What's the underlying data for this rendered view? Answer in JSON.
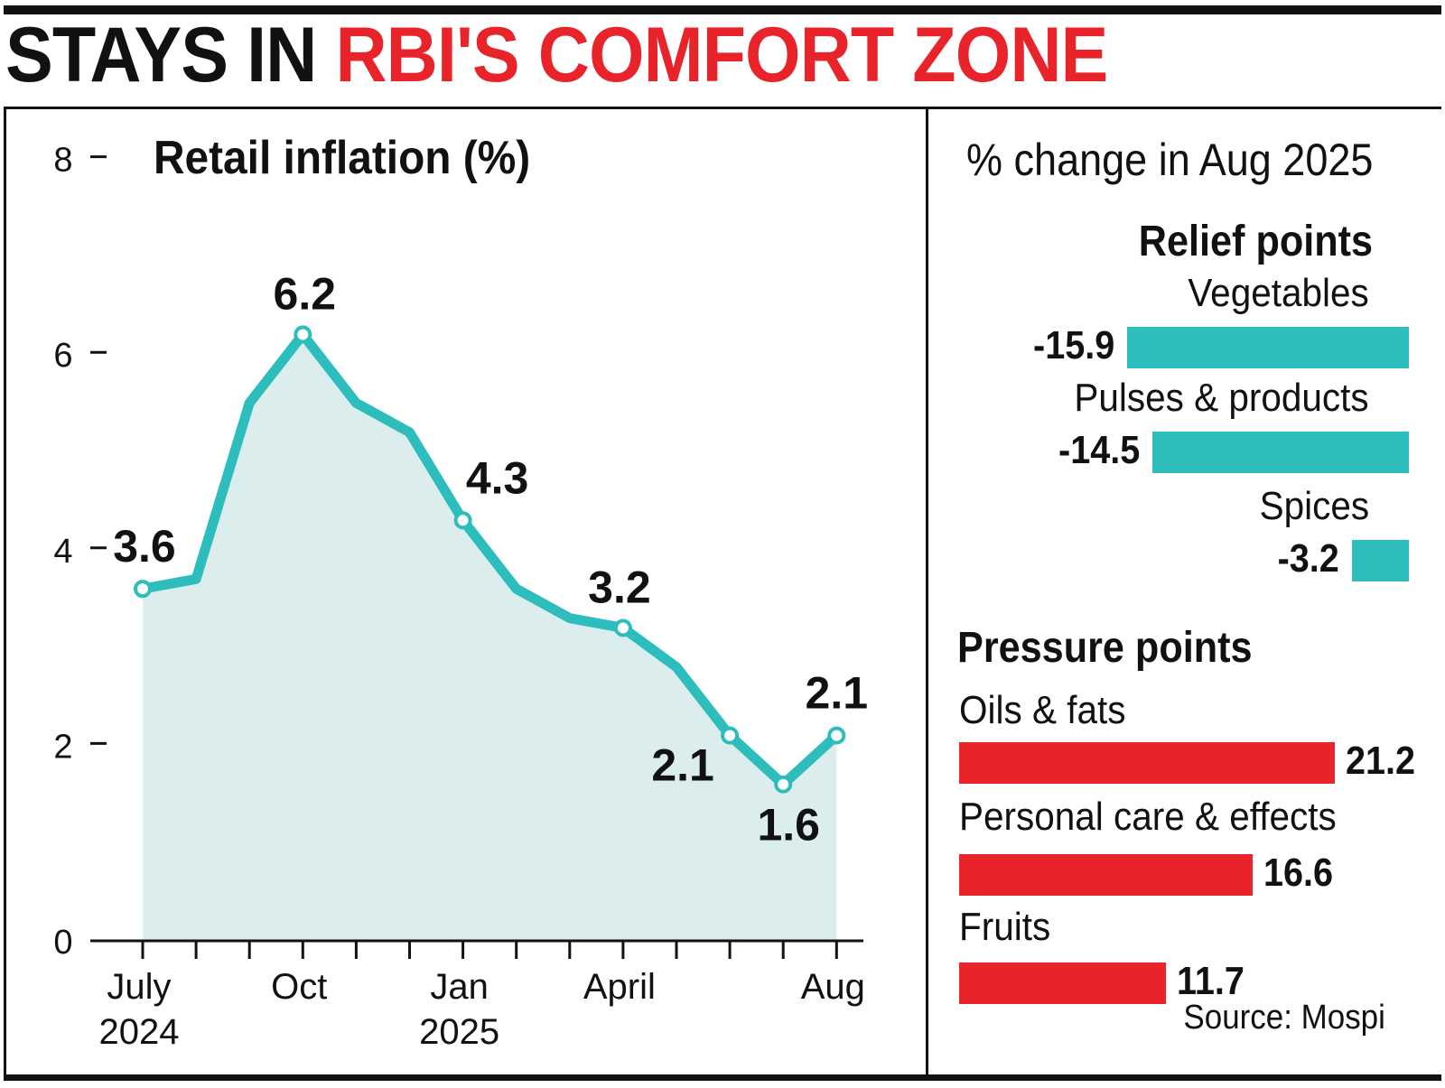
{
  "headline": {
    "part1": "STAYS IN ",
    "part2": "RBI'S COMFORT ZONE"
  },
  "colors": {
    "accent_red": "#e8232a",
    "teal": "#2ebdbd",
    "area_fill": "#dbeeed",
    "text": "#111111"
  },
  "chart_data": [
    {
      "type": "area",
      "title": "Retail inflation (%)",
      "xlabel": "",
      "ylabel": "",
      "ylim": [
        0,
        8
      ],
      "yticks": [
        "0",
        "2",
        "4",
        "6",
        "8"
      ],
      "xtick_labels": [
        {
          "month_index": 0,
          "line1": "July",
          "line2": "2024"
        },
        {
          "month_index": 3,
          "line1": "Oct",
          "line2": ""
        },
        {
          "month_index": 6,
          "line1": "Jan",
          "line2": "2025"
        },
        {
          "month_index": 9,
          "line1": "April",
          "line2": ""
        },
        {
          "month_index": 13,
          "line1": "Aug",
          "line2": ""
        }
      ],
      "x": [
        "Jul 2024",
        "Aug 2024",
        "Sep 2024",
        "Oct 2024",
        "Nov 2024",
        "Dec 2024",
        "Jan 2025",
        "Feb 2025",
        "Mar 2025",
        "Apr 2025",
        "May 2025",
        "Jun 2025",
        "Jul 2025",
        "Aug 2025"
      ],
      "values": [
        3.6,
        3.7,
        5.5,
        6.2,
        5.5,
        5.2,
        4.3,
        3.6,
        3.3,
        3.2,
        2.8,
        2.1,
        1.6,
        2.1
      ],
      "marked_points": [
        0,
        3,
        6,
        9,
        11,
        12,
        13
      ],
      "data_labels": [
        {
          "index": 0,
          "text": "3.6"
        },
        {
          "index": 3,
          "text": "6.2"
        },
        {
          "index": 6,
          "text": "4.3"
        },
        {
          "index": 9,
          "text": "3.2"
        },
        {
          "index": 11,
          "text": "2.1"
        },
        {
          "index": 12,
          "text": "1.6"
        },
        {
          "index": 13,
          "text": "2.1"
        }
      ]
    },
    {
      "type": "bar",
      "title": "% change in Aug 2025",
      "groups": [
        {
          "name": "Relief points",
          "items": [
            {
              "category": "Vegetables",
              "value": -15.9,
              "label": "-15.9"
            },
            {
              "category": "Pulses & products",
              "value": -14.5,
              "label": "-14.5"
            },
            {
              "category": "Spices",
              "value": -3.2,
              "label": "-3.2"
            }
          ]
        },
        {
          "name": "Pressure points",
          "items": [
            {
              "category": "Oils & fats",
              "value": 21.2,
              "label": "21.2"
            },
            {
              "category": "Personal care & effects",
              "value": 16.6,
              "label": "16.6"
            },
            {
              "category": "Fruits",
              "value": 11.7,
              "label": "11.7"
            }
          ]
        }
      ]
    }
  ],
  "source": "Source: Mospi"
}
